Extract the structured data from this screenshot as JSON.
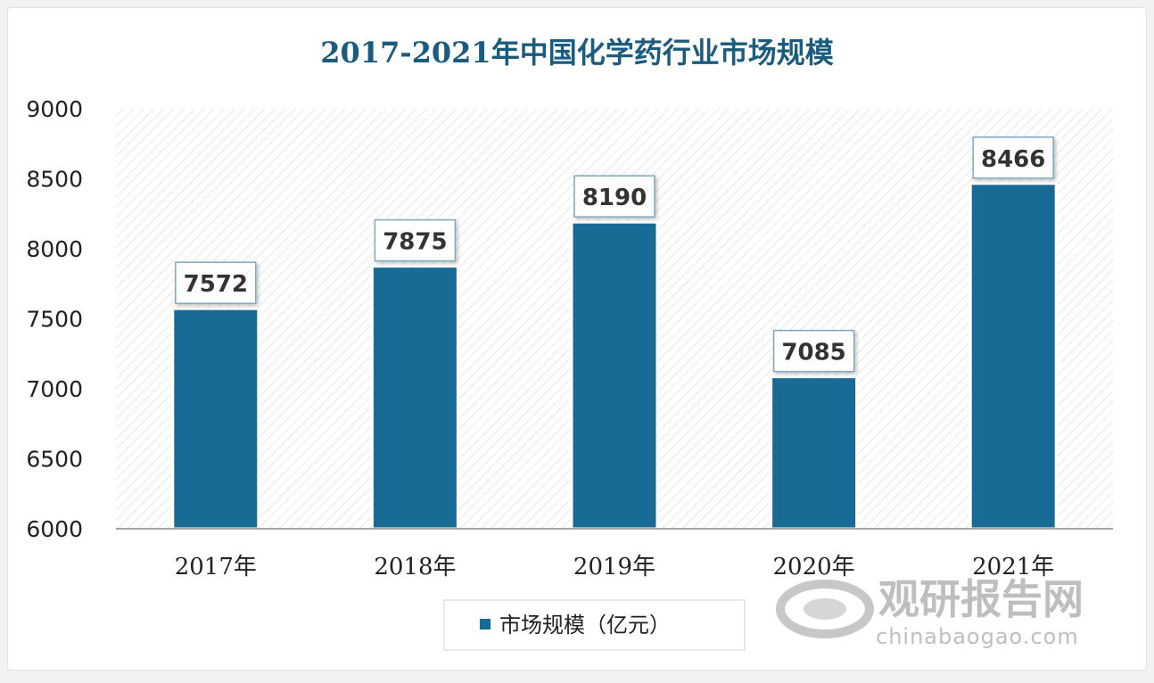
{
  "colors": {
    "bar": "#186b94",
    "title": "#1b5c7e",
    "axis_text": "#222222",
    "hatch": "#d8d8d8",
    "label_border": "#7fa9c0",
    "label_text": "#333333"
  },
  "chart_data": {
    "type": "bar",
    "title": "2017-2021年中国化学药行业市场规模",
    "categories": [
      "2017年",
      "2018年",
      "2019年",
      "2020年",
      "2021年"
    ],
    "series": [
      {
        "name": "市场规模（亿元）",
        "values": [
          7572,
          7875,
          8190,
          7085,
          8466
        ]
      }
    ],
    "ylim": [
      6000,
      9000
    ],
    "yticks": [
      "6000",
      "6500",
      "7000",
      "7500",
      "8000",
      "8500",
      "9000"
    ],
    "xlabel": "",
    "ylabel": "",
    "legend_position": "bottom",
    "data_labels": [
      "7572",
      "7875",
      "8190",
      "7085",
      "8466"
    ],
    "grid": false
  },
  "watermark": {
    "brand": "观研报告网",
    "url": "chinabaogao.com"
  }
}
